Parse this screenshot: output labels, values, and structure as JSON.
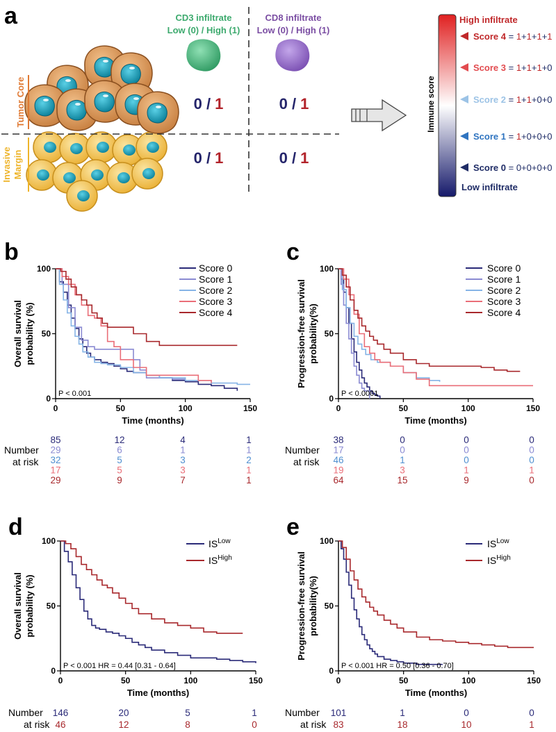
{
  "panel_a": {
    "label": "a",
    "cd3_title": "CD3 infiltrate",
    "cd3_sub": "Low (0) / High (1)",
    "cd8_title": "CD8 infiltrate",
    "cd8_sub": "Low (0) / High (1)",
    "tumor_core": "Tumor Core",
    "invasive_1": "Invasive",
    "invasive_2": "Margin",
    "zero": "0",
    "slash": " / ",
    "one": "1",
    "immune_score": "Immune score",
    "high_infiltrate": "High infiltrate",
    "low_infiltrate": "Low infiltrate",
    "scores": [
      {
        "label": "Score 4",
        "parts": [
          "1",
          "1",
          "1",
          "1"
        ],
        "color": "#c0282a"
      },
      {
        "label": "Score 3",
        "parts": [
          "1",
          "1",
          "1",
          "0"
        ],
        "color": "#e24b4f"
      },
      {
        "label": "Score 2",
        "parts": [
          "1",
          "1",
          "0",
          "0"
        ],
        "color": "#9cc3e6"
      },
      {
        "label": "Score 1",
        "parts": [
          "1",
          "0",
          "0",
          "0"
        ],
        "color": "#2f74c0"
      },
      {
        "label": "Score 0",
        "parts": [
          "0",
          "0",
          "0",
          "0"
        ],
        "color": "#1f2c66"
      }
    ],
    "colors": {
      "cd3": "#3daa6e",
      "cd8": "#7b4ea3",
      "low": "#25256b",
      "high": "#b2232a",
      "core": "#e07a34",
      "margin": "#eeb42a"
    }
  },
  "risk": {
    "label1": "Number",
    "label2": "at risk"
  },
  "legend_IS": {
    "base": "IS",
    "low": "Low",
    "high": "High"
  },
  "chart_data": [
    {
      "panel": "b",
      "type": "line",
      "ylabel1": "Overall survival",
      "ylabel2": "probability (%)",
      "xlabel": "Time (months)",
      "xlim": [
        0,
        150
      ],
      "ylim": [
        0,
        100
      ],
      "xticks": [
        "0",
        "50",
        "100",
        "150"
      ],
      "yticks": [
        "0",
        "50",
        "100"
      ],
      "pvalue": "P < 0.001",
      "series": [
        {
          "name": "Score 0",
          "color": "#2a2a78",
          "x": [
            0,
            3,
            6,
            9,
            12,
            15,
            18,
            21,
            24,
            27,
            30,
            35,
            40,
            45,
            50,
            55,
            60,
            70,
            80,
            90,
            100,
            110,
            120,
            130,
            140
          ],
          "y": [
            100,
            90,
            82,
            72,
            62,
            54,
            46,
            40,
            35,
            32,
            30,
            28,
            27,
            25,
            23,
            21,
            20,
            18,
            16,
            14,
            13,
            11,
            10,
            8,
            6
          ]
        },
        {
          "name": "Score 1",
          "color": "#8a8ad2",
          "x": [
            0,
            5,
            10,
            15,
            20,
            25,
            30,
            40,
            50,
            60,
            65,
            70,
            80,
            90,
            100
          ],
          "y": [
            100,
            88,
            70,
            55,
            45,
            40,
            38,
            38,
            38,
            30,
            22,
            16,
            16,
            15,
            15
          ]
        },
        {
          "name": "Score 2",
          "color": "#86b4e6",
          "x": [
            0,
            3,
            6,
            9,
            12,
            15,
            18,
            21,
            25,
            30,
            35,
            40,
            50,
            60,
            70,
            80,
            100,
            120,
            140,
            150
          ],
          "y": [
            100,
            88,
            76,
            66,
            56,
            48,
            42,
            36,
            32,
            28,
            27,
            26,
            24,
            20,
            18,
            16,
            14,
            12,
            11,
            11
          ]
        },
        {
          "name": "Score 3",
          "color": "#ea6e78",
          "x": [
            0,
            5,
            10,
            15,
            20,
            25,
            30,
            35,
            40,
            45,
            50,
            60,
            70,
            80,
            95,
            100,
            110,
            120
          ],
          "y": [
            100,
            94,
            88,
            80,
            72,
            64,
            62,
            56,
            44,
            40,
            30,
            24,
            18,
            18,
            18,
            18,
            14,
            12
          ]
        },
        {
          "name": "Score 4",
          "color": "#a8282c",
          "x": [
            0,
            4,
            8,
            12,
            16,
            20,
            24,
            28,
            32,
            36,
            40,
            50,
            60,
            70,
            80,
            90,
            100,
            110,
            120,
            130,
            140
          ],
          "y": [
            100,
            98,
            92,
            86,
            80,
            76,
            72,
            66,
            62,
            58,
            55,
            55,
            50,
            44,
            41,
            41,
            41,
            41,
            41,
            41,
            41
          ]
        }
      ],
      "risk": [
        {
          "values": [
            "85",
            "12",
            "4",
            "1"
          ],
          "color": "#2a2a78"
        },
        {
          "values": [
            "29",
            "6",
            "1",
            "1"
          ],
          "color": "#8a8ad2"
        },
        {
          "values": [
            "32",
            "5",
            "3",
            "2"
          ],
          "color": "#4f8fd0"
        },
        {
          "values": [
            "17",
            "5",
            "3",
            "1"
          ],
          "color": "#ea6e78"
        },
        {
          "values": [
            "29",
            "9",
            "7",
            "1"
          ],
          "color": "#a8282c"
        }
      ]
    },
    {
      "panel": "c",
      "type": "line",
      "ylabel1": "Progression-free survival",
      "ylabel2": "probability(%)",
      "xlabel": "Time (months)",
      "xlim": [
        0,
        150
      ],
      "ylim": [
        0,
        100
      ],
      "xticks": [
        "0",
        "50",
        "100",
        "150"
      ],
      "yticks": [
        "0",
        "50",
        "100"
      ],
      "pvalue": "P < 0.0001",
      "series": [
        {
          "name": "Score 0",
          "color": "#2a2a78",
          "x": [
            0,
            2,
            4,
            6,
            8,
            10,
            12,
            14,
            16,
            18,
            20,
            22,
            24,
            26,
            28,
            30,
            32
          ],
          "y": [
            100,
            92,
            82,
            70,
            58,
            46,
            36,
            28,
            22,
            16,
            12,
            9,
            6,
            4,
            3,
            2,
            0
          ]
        },
        {
          "name": "Score 1",
          "color": "#8a8ad2",
          "x": [
            0,
            2,
            4,
            6,
            8,
            10,
            12,
            14,
            16,
            18,
            20,
            24
          ],
          "y": [
            100,
            88,
            72,
            58,
            46,
            35,
            25,
            18,
            12,
            8,
            6,
            0
          ]
        },
        {
          "name": "Score 2",
          "color": "#86b4e6",
          "x": [
            0,
            3,
            6,
            9,
            12,
            15,
            18,
            21,
            25,
            30,
            40,
            50,
            60,
            70,
            78
          ],
          "y": [
            100,
            84,
            70,
            58,
            48,
            42,
            38,
            34,
            30,
            28,
            25,
            20,
            16,
            14,
            13
          ]
        },
        {
          "name": "Score 3",
          "color": "#ea6e78",
          "x": [
            0,
            4,
            8,
            12,
            16,
            20,
            24,
            28,
            32,
            40,
            50,
            60,
            70,
            150
          ],
          "y": [
            100,
            92,
            80,
            65,
            50,
            40,
            35,
            30,
            28,
            25,
            20,
            15,
            10,
            10
          ]
        },
        {
          "name": "Score 4",
          "color": "#a8282c",
          "x": [
            0,
            3,
            6,
            9,
            12,
            15,
            18,
            21,
            24,
            27,
            30,
            35,
            40,
            50,
            60,
            70,
            80,
            90,
            100,
            110,
            120,
            130,
            140
          ],
          "y": [
            100,
            95,
            86,
            76,
            68,
            62,
            56,
            52,
            48,
            45,
            42,
            38,
            35,
            30,
            27,
            25,
            25,
            25,
            25,
            24,
            22,
            21,
            21
          ]
        }
      ],
      "risk": [
        {
          "values": [
            "38",
            "0",
            "0",
            "0"
          ],
          "color": "#2a2a78"
        },
        {
          "values": [
            "17",
            "0",
            "0",
            "0"
          ],
          "color": "#8a8ad2"
        },
        {
          "values": [
            "46",
            "1",
            "0",
            "0"
          ],
          "color": "#4f8fd0"
        },
        {
          "values": [
            "19",
            "3",
            "1",
            "1"
          ],
          "color": "#ea6e78"
        },
        {
          "values": [
            "64",
            "15",
            "9",
            "0"
          ],
          "color": "#a8282c"
        }
      ]
    },
    {
      "panel": "d",
      "type": "line",
      "ylabel1": "Overall survival",
      "ylabel2": "probability (%)",
      "xlabel": "Time (months)",
      "xlim": [
        0,
        150
      ],
      "ylim": [
        0,
        100
      ],
      "xticks": [
        "0",
        "50",
        "100",
        "150"
      ],
      "yticks": [
        "0",
        "50",
        "100"
      ],
      "pvalue": "P < 0.001 HR = 0.44 [0.31 - 0.64]",
      "series": [
        {
          "name": "IS Low",
          "color": "#2a2a78",
          "x": [
            0,
            3,
            6,
            9,
            12,
            15,
            18,
            21,
            24,
            27,
            30,
            35,
            40,
            45,
            50,
            55,
            60,
            65,
            70,
            80,
            90,
            100,
            110,
            120,
            130,
            140,
            150
          ],
          "y": [
            100,
            92,
            84,
            74,
            64,
            55,
            46,
            40,
            35,
            33,
            32,
            30,
            29,
            27,
            25,
            22,
            20,
            18,
            16,
            14,
            12,
            10,
            10,
            9,
            8,
            7,
            6
          ]
        },
        {
          "name": "IS High",
          "color": "#a8282c",
          "x": [
            0,
            4,
            8,
            12,
            16,
            20,
            24,
            28,
            32,
            36,
            40,
            45,
            50,
            55,
            60,
            70,
            80,
            90,
            100,
            110,
            120,
            130,
            140
          ],
          "y": [
            100,
            98,
            94,
            88,
            82,
            78,
            74,
            70,
            66,
            64,
            60,
            56,
            52,
            48,
            44,
            40,
            37,
            35,
            33,
            30,
            29,
            29,
            29
          ]
        }
      ],
      "legend": [
        "IS Low",
        "IS High"
      ],
      "risk": [
        {
          "values": [
            "146",
            "20",
            "5",
            "1"
          ],
          "color": "#2a2a78"
        },
        {
          "values": [
            "46",
            "12",
            "8",
            "0"
          ],
          "color": "#a8282c"
        }
      ]
    },
    {
      "panel": "e",
      "type": "line",
      "ylabel1": "Progression-free survival",
      "ylabel2": "probability(%)",
      "xlabel": "Time (months)",
      "xlim": [
        0,
        150
      ],
      "ylim": [
        0,
        100
      ],
      "xticks": [
        "0",
        "50",
        "100",
        "150"
      ],
      "yticks": [
        "0",
        "50",
        "100"
      ],
      "pvalue": "P < 0.001 HR = 0.50 [0.36 - 0.70]",
      "series": [
        {
          "name": "IS Low",
          "color": "#2a2a78",
          "x": [
            0,
            2,
            4,
            6,
            8,
            10,
            12,
            14,
            16,
            18,
            20,
            22,
            24,
            26,
            28,
            30,
            35,
            40,
            45,
            50,
            60,
            70,
            80
          ],
          "y": [
            100,
            94,
            86,
            76,
            66,
            56,
            47,
            40,
            34,
            28,
            24,
            20,
            17,
            15,
            13,
            11,
            9,
            8,
            7,
            6,
            5,
            5,
            5
          ]
        },
        {
          "name": "IS High",
          "color": "#a8282c",
          "x": [
            0,
            3,
            6,
            9,
            12,
            15,
            18,
            21,
            24,
            27,
            30,
            35,
            40,
            45,
            50,
            60,
            70,
            80,
            90,
            100,
            110,
            120,
            130,
            140,
            150
          ],
          "y": [
            100,
            95,
            86,
            77,
            70,
            63,
            57,
            53,
            49,
            46,
            43,
            39,
            36,
            33,
            30,
            26,
            24,
            23,
            22,
            21,
            20,
            19,
            18,
            18,
            18
          ]
        }
      ],
      "legend": [
        "IS Low",
        "IS High"
      ],
      "risk": [
        {
          "values": [
            "101",
            "1",
            "0",
            "0"
          ],
          "color": "#2a2a78"
        },
        {
          "values": [
            "83",
            "18",
            "10",
            "1"
          ],
          "color": "#a8282c"
        }
      ]
    }
  ]
}
